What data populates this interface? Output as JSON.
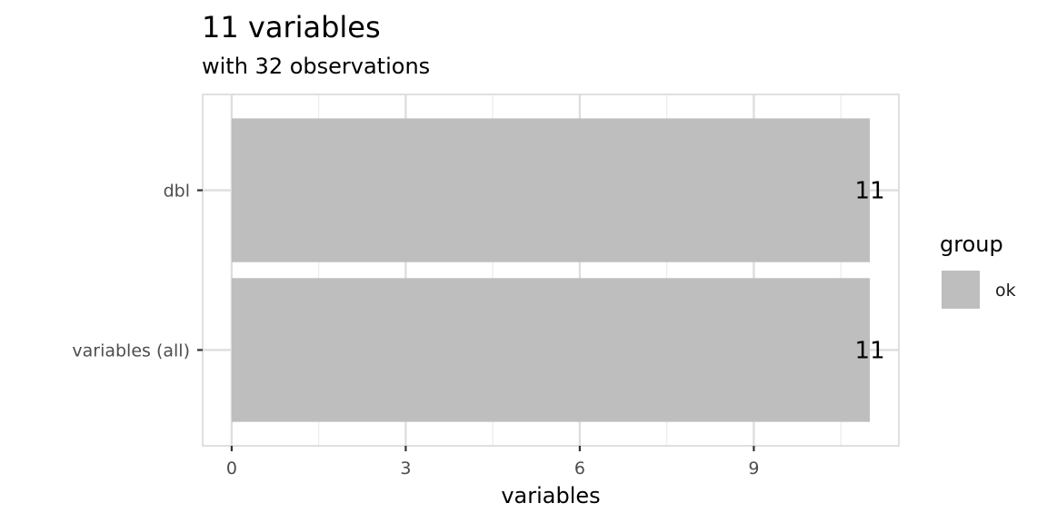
{
  "chart_data": {
    "type": "bar",
    "orientation": "horizontal",
    "title": "11 variables",
    "subtitle": "with 32 observations",
    "categories": [
      "variables (all)",
      "dbl"
    ],
    "values": [
      11,
      11
    ],
    "data_labels": [
      "11",
      "11"
    ],
    "xlabel": "variables",
    "ylabel": "",
    "xlim": [
      -0.5,
      11.5
    ],
    "x_ticks": [
      0,
      3,
      6,
      9
    ],
    "x_tick_labels": [
      "0",
      "3",
      "6",
      "9"
    ],
    "grid": true,
    "legend": {
      "title": "group",
      "position": "right",
      "entries": [
        {
          "label": "ok",
          "color": "#bebebe"
        }
      ]
    },
    "colors": {
      "bar": "#bebebe",
      "grid": "#dedede",
      "panel_border": "#d9d9d9"
    }
  }
}
